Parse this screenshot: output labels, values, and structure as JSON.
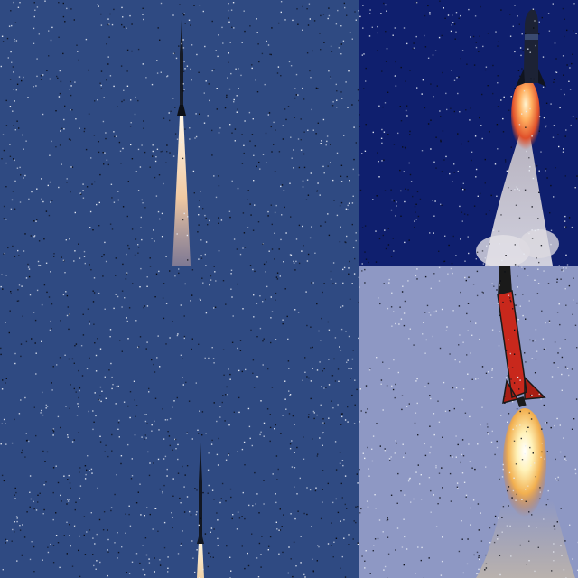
{
  "collage": {
    "panels": [
      {
        "id": "top-left",
        "subject": "rocket-ascending-icon",
        "sky": "#2f4a82",
        "rocket_body": "#1a1f2a",
        "exhaust": "#f2d8b8"
      },
      {
        "id": "top-right",
        "subject": "rocket-launch-smoke-icon",
        "sky": "#0f1f6e",
        "rocket_body": "#1c2235",
        "exhaust": "#ff7a3a"
      },
      {
        "id": "bottom-left",
        "subject": "rocket-distant-icon",
        "sky": "#2f4a82",
        "rocket_body": "#141a26",
        "exhaust": "#f4e2c2"
      },
      {
        "id": "bottom-right",
        "subject": "red-rocket-flame-icon",
        "sky": "#8e98c4",
        "rocket_body": "#c8281c",
        "exhaust": "#fff1b0"
      }
    ]
  }
}
